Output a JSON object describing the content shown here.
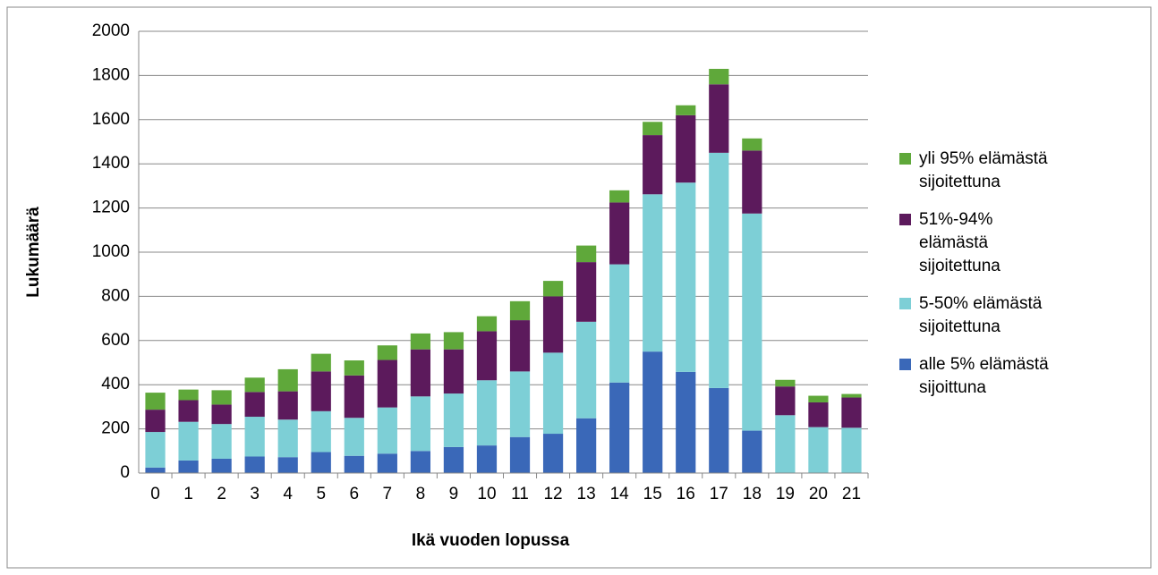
{
  "chart_data": {
    "type": "stacked_bar",
    "x_label": "Ikä vuoden lopussa",
    "y_label": "Lukumäärä",
    "categories": [
      "0",
      "1",
      "2",
      "3",
      "4",
      "5",
      "6",
      "7",
      "8",
      "9",
      "10",
      "11",
      "12",
      "13",
      "14",
      "15",
      "16",
      "17",
      "18",
      "19",
      "20",
      "21"
    ],
    "series": [
      {
        "name": "alle 5% elämästä sijoittuna",
        "color": "#3a68b8",
        "values": [
          25,
          57,
          65,
          75,
          72,
          95,
          78,
          88,
          100,
          118,
          125,
          163,
          178,
          248,
          410,
          550,
          458,
          385,
          192,
          0,
          0,
          0
        ]
      },
      {
        "name": "5-50% elämästä sijoitettuna",
        "color": "#7dcfd6",
        "values": [
          161,
          175,
          157,
          180,
          170,
          185,
          172,
          209,
          247,
          242,
          295,
          297,
          367,
          437,
          535,
          712,
          857,
          1065,
          983,
          262,
          208,
          205
        ]
      },
      {
        "name": "51%-94% elämästä sijoitettuna",
        "color": "#5c1a5c",
        "values": [
          101,
          98,
          88,
          112,
          128,
          180,
          192,
          215,
          213,
          200,
          222,
          232,
          255,
          270,
          280,
          268,
          305,
          310,
          285,
          130,
          112,
          137
        ]
      },
      {
        "name": "yli 95% elämästä sijoitettuna",
        "color": "#5fa83a",
        "values": [
          77,
          48,
          65,
          65,
          100,
          80,
          68,
          66,
          72,
          78,
          68,
          86,
          70,
          75,
          55,
          60,
          45,
          70,
          55,
          30,
          30,
          16
        ]
      }
    ],
    "ylim": [
      0,
      2000
    ],
    "yticks": [
      0,
      200,
      400,
      600,
      800,
      1000,
      1200,
      1400,
      1600,
      1800,
      2000
    ],
    "grid": true,
    "legend": "right"
  }
}
